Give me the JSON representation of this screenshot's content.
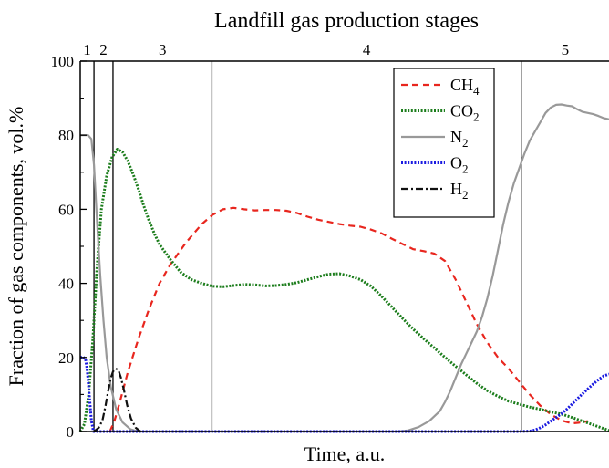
{
  "chart_data": {
    "type": "line",
    "title": "Landfill gas production stages",
    "xlabel": "Time, a.u.",
    "ylabel": "Fraction of gas components, vol.%",
    "xlim": [
      0,
      100
    ],
    "ylim": [
      0,
      100
    ],
    "yticks": [
      "0",
      "20",
      "40",
      "60",
      "80",
      "100"
    ],
    "grid": false,
    "legend_position": "top-right",
    "stages": [
      {
        "label": "1",
        "start": 0,
        "end": 2.6
      },
      {
        "label": "2",
        "start": 2.6,
        "end": 6.2
      },
      {
        "label": "3",
        "start": 6.2,
        "end": 24.9
      },
      {
        "label": "4",
        "start": 24.9,
        "end": 83.4
      },
      {
        "label": "5",
        "start": 83.4,
        "end": 100
      }
    ],
    "series": [
      {
        "name": "CH",
        "subscript": "4",
        "color": "#e8261e",
        "dash": "dashed",
        "points": [
          [
            5.6,
            0
          ],
          [
            6.5,
            3
          ],
          [
            7.5,
            8
          ],
          [
            9,
            16
          ],
          [
            11,
            25
          ],
          [
            13,
            33
          ],
          [
            15,
            40
          ],
          [
            17,
            45
          ],
          [
            20,
            51
          ],
          [
            23,
            56
          ],
          [
            25,
            58.5
          ],
          [
            27,
            60
          ],
          [
            29,
            60.4
          ],
          [
            31,
            60
          ],
          [
            33,
            59.7
          ],
          [
            35,
            59.8
          ],
          [
            37,
            59.8
          ],
          [
            39,
            59.6
          ],
          [
            41,
            59
          ],
          [
            43,
            58
          ],
          [
            45,
            57.2
          ],
          [
            47,
            56.6
          ],
          [
            49,
            56
          ],
          [
            51,
            55.6
          ],
          [
            53,
            55.3
          ],
          [
            55,
            54.5
          ],
          [
            57,
            53.5
          ],
          [
            59,
            52
          ],
          [
            61,
            50.6
          ],
          [
            63,
            49.2
          ],
          [
            65,
            48.7
          ],
          [
            67,
            48
          ],
          [
            69,
            46
          ],
          [
            71,
            41
          ],
          [
            73,
            35
          ],
          [
            75,
            29
          ],
          [
            77,
            24
          ],
          [
            79,
            20
          ],
          [
            81,
            17
          ],
          [
            83,
            13.5
          ],
          [
            85,
            10
          ],
          [
            87,
            7
          ],
          [
            89,
            4.6
          ],
          [
            91,
            3
          ],
          [
            93,
            2.2
          ],
          [
            95,
            2.5
          ],
          [
            96,
            2.8
          ]
        ]
      },
      {
        "name": "CO",
        "subscript": "2",
        "color": "#1c7d1c",
        "dash": "dotted",
        "points": [
          [
            0,
            0
          ],
          [
            0.8,
            2
          ],
          [
            1.6,
            10
          ],
          [
            2.4,
            25
          ],
          [
            3.2,
            45
          ],
          [
            4,
            60
          ],
          [
            5,
            69
          ],
          [
            6,
            74
          ],
          [
            7,
            76.2
          ],
          [
            8,
            75.5
          ],
          [
            9,
            73
          ],
          [
            10,
            69.5
          ],
          [
            11,
            65.5
          ],
          [
            12,
            61
          ],
          [
            13,
            57
          ],
          [
            14,
            53.5
          ],
          [
            15,
            50.5
          ],
          [
            17,
            46.5
          ],
          [
            19,
            43
          ],
          [
            21,
            41
          ],
          [
            23,
            40
          ],
          [
            25,
            39.2
          ],
          [
            27,
            39.1
          ],
          [
            29,
            39.4
          ],
          [
            31,
            39.7
          ],
          [
            33,
            39.6
          ],
          [
            35,
            39.3
          ],
          [
            37,
            39.4
          ],
          [
            39,
            39.7
          ],
          [
            41,
            40.2
          ],
          [
            43,
            41
          ],
          [
            45,
            41.8
          ],
          [
            47,
            42.5
          ],
          [
            49,
            42.6
          ],
          [
            51,
            42
          ],
          [
            53,
            41
          ],
          [
            55,
            39.2
          ],
          [
            57,
            36.5
          ],
          [
            59,
            33.5
          ],
          [
            61,
            30.5
          ],
          [
            63,
            27.6
          ],
          [
            65,
            25
          ],
          [
            67,
            22.5
          ],
          [
            69,
            20
          ],
          [
            71,
            17.6
          ],
          [
            73,
            15.3
          ],
          [
            75,
            13
          ],
          [
            77,
            11
          ],
          [
            79,
            9.5
          ],
          [
            81,
            8.2
          ],
          [
            83,
            7.4
          ],
          [
            85,
            6.6
          ],
          [
            87,
            6
          ],
          [
            89,
            5.3
          ],
          [
            91,
            4.7
          ],
          [
            93,
            3.8
          ],
          [
            95,
            2.8
          ],
          [
            97,
            1.8
          ],
          [
            99,
            0.8
          ],
          [
            100,
            0.3
          ]
        ]
      },
      {
        "name": "N",
        "subscript": "2",
        "color": "#999999",
        "dash": "solid",
        "points": [
          [
            0,
            80
          ],
          [
            1.5,
            80
          ],
          [
            2.1,
            79
          ],
          [
            2.6,
            72
          ],
          [
            3.2,
            56
          ],
          [
            3.8,
            42
          ],
          [
            4.4,
            30
          ],
          [
            5,
            20
          ],
          [
            5.8,
            12
          ],
          [
            6.8,
            6
          ],
          [
            8,
            2.5
          ],
          [
            9.5,
            0.6
          ],
          [
            11,
            0
          ],
          [
            60,
            0
          ],
          [
            62,
            0.3
          ],
          [
            64,
            1.2
          ],
          [
            66,
            2.8
          ],
          [
            68,
            5.5
          ],
          [
            69,
            8
          ],
          [
            70,
            11
          ],
          [
            71,
            14.5
          ],
          [
            72,
            18
          ],
          [
            73,
            21
          ],
          [
            74,
            24
          ],
          [
            75,
            27
          ],
          [
            76,
            31
          ],
          [
            77,
            36
          ],
          [
            78,
            42
          ],
          [
            79,
            49
          ],
          [
            80,
            56
          ],
          [
            81,
            62
          ],
          [
            82,
            67
          ],
          [
            83,
            71
          ],
          [
            84,
            75
          ],
          [
            85,
            78.5
          ],
          [
            86,
            81
          ],
          [
            87,
            83.5
          ],
          [
            88,
            86
          ],
          [
            89,
            87.5
          ],
          [
            90,
            88.2
          ],
          [
            91,
            88.3
          ],
          [
            92,
            88
          ],
          [
            93,
            87.8
          ],
          [
            94,
            87
          ],
          [
            95,
            86.3
          ],
          [
            96,
            86
          ],
          [
            97,
            85.7
          ],
          [
            98,
            85.2
          ],
          [
            99,
            84.6
          ],
          [
            100,
            84.3
          ]
        ]
      },
      {
        "name": "O",
        "subscript": "2",
        "color": "#1a1ae0",
        "dash": "dotted",
        "points": [
          [
            0,
            20
          ],
          [
            0.5,
            20.2
          ],
          [
            1,
            19.5
          ],
          [
            1.3,
            17
          ],
          [
            1.7,
            10
          ],
          [
            2.1,
            3
          ],
          [
            2.5,
            0
          ],
          [
            83,
            0
          ],
          [
            85,
            0.1
          ],
          [
            86,
            0.4
          ],
          [
            87,
            1
          ],
          [
            88,
            1.8
          ],
          [
            89,
            2.8
          ],
          [
            90,
            3.8
          ],
          [
            91,
            4.8
          ],
          [
            92,
            6
          ],
          [
            93,
            7.4
          ],
          [
            94,
            8.8
          ],
          [
            95,
            10.2
          ],
          [
            96,
            11.5
          ],
          [
            97,
            12.8
          ],
          [
            98,
            14
          ],
          [
            99,
            15
          ],
          [
            100,
            15.5
          ]
        ]
      },
      {
        "name": "H",
        "subscript": "2",
        "color": "#111111",
        "dash": "dashdot",
        "points": [
          [
            2.6,
            0
          ],
          [
            3.5,
            1
          ],
          [
            4.2,
            3
          ],
          [
            4.8,
            7
          ],
          [
            5.3,
            11
          ],
          [
            5.8,
            14.5
          ],
          [
            6.2,
            16.2
          ],
          [
            6.7,
            17
          ],
          [
            7.2,
            16.6
          ],
          [
            7.7,
            14.5
          ],
          [
            8.3,
            11
          ],
          [
            8.9,
            7
          ],
          [
            9.6,
            3.5
          ],
          [
            10.5,
            1
          ],
          [
            11.4,
            0
          ]
        ]
      }
    ]
  }
}
